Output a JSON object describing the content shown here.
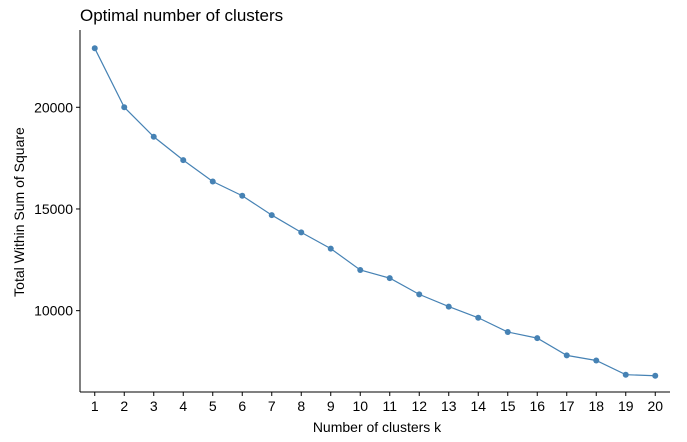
{
  "chart_data": {
    "type": "line",
    "title": "Optimal number of clusters",
    "xlabel": "Number of clusters k",
    "ylabel": "Total Within Sum of Square",
    "x": [
      1,
      2,
      3,
      4,
      5,
      6,
      7,
      8,
      9,
      10,
      11,
      12,
      13,
      14,
      15,
      16,
      17,
      18,
      19,
      20
    ],
    "series": [
      {
        "values": [
          22900,
          20000,
          18550,
          17400,
          16350,
          15650,
          14700,
          13850,
          13050,
          12000,
          11600,
          10800,
          10200,
          9650,
          8950,
          8650,
          7800,
          7550,
          6850,
          6800
        ]
      }
    ],
    "xlim": [
      0.5,
      20.5
    ],
    "ylim": [
      6000,
      23800
    ],
    "yticks": [
      10000,
      15000,
      20000
    ],
    "grid": false,
    "line_color": "#4682B4",
    "point_color": "#4682B4",
    "axis_color": "#000000"
  }
}
